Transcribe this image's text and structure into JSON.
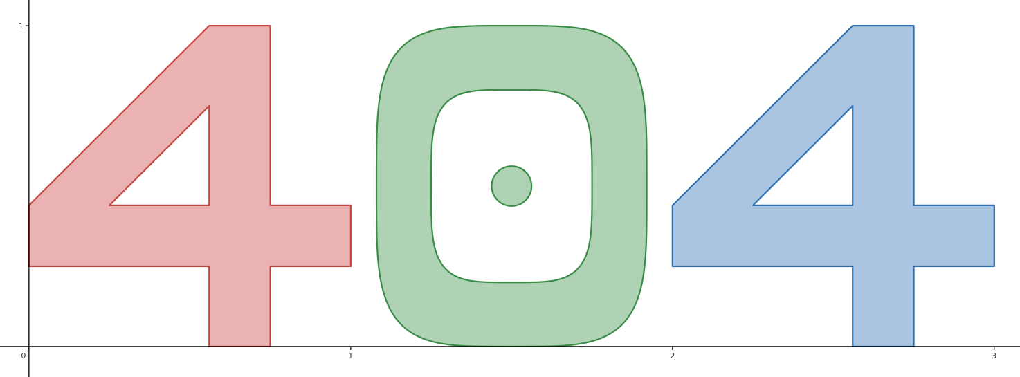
{
  "chart_data": {
    "type": "area",
    "title": "",
    "xlabel": "",
    "ylabel": "",
    "xlim": [
      -0.09,
      3.08
    ],
    "ylim": [
      -0.095,
      1.08
    ],
    "grid": false,
    "x_ticks": [
      {
        "value": 0,
        "label": "0"
      },
      {
        "value": 1,
        "label": "1"
      },
      {
        "value": 2,
        "label": "2"
      },
      {
        "value": 3,
        "label": "3"
      }
    ],
    "y_ticks": [
      {
        "value": 1,
        "label": "1"
      }
    ],
    "series": [
      {
        "color": "#c74440",
        "fill": "#eab2b2",
        "shape": "polygon",
        "points": [
          [
            0.0,
            0.44
          ],
          [
            0.56,
            1.0
          ],
          [
            0.75,
            1.0
          ],
          [
            0.75,
            0.44
          ],
          [
            1.0,
            0.44
          ],
          [
            1.0,
            0.25
          ],
          [
            0.75,
            0.25
          ],
          [
            0.75,
            0.0
          ],
          [
            0.56,
            0.0
          ],
          [
            0.56,
            0.25
          ],
          [
            0.0,
            0.25
          ]
        ],
        "hole": [
          [
            0.25,
            0.44
          ],
          [
            0.56,
            0.75
          ],
          [
            0.56,
            0.44
          ]
        ]
      },
      {
        "color": "#388c46",
        "fill": "#afd1b4",
        "shape": "superellipse",
        "center": [
          1.5,
          0.5
        ],
        "outer_radius": [
          0.42,
          0.5
        ],
        "inner_radius": [
          0.25,
          0.3
        ],
        "exponent": 4,
        "dot": {
          "center": [
            1.5,
            0.5
          ],
          "radius": 0.062
        }
      },
      {
        "color": "#2d70b3",
        "fill": "#a9c5e1",
        "shape": "polygon",
        "points": [
          [
            2.0,
            0.44
          ],
          [
            2.56,
            1.0
          ],
          [
            2.75,
            1.0
          ],
          [
            2.75,
            0.44
          ],
          [
            3.0,
            0.44
          ],
          [
            3.0,
            0.25
          ],
          [
            2.75,
            0.25
          ],
          [
            2.75,
            0.0
          ],
          [
            2.56,
            0.0
          ],
          [
            2.56,
            0.25
          ],
          [
            2.0,
            0.25
          ]
        ],
        "hole": [
          [
            2.25,
            0.44
          ],
          [
            2.56,
            0.75
          ],
          [
            2.56,
            0.44
          ]
        ]
      }
    ]
  }
}
